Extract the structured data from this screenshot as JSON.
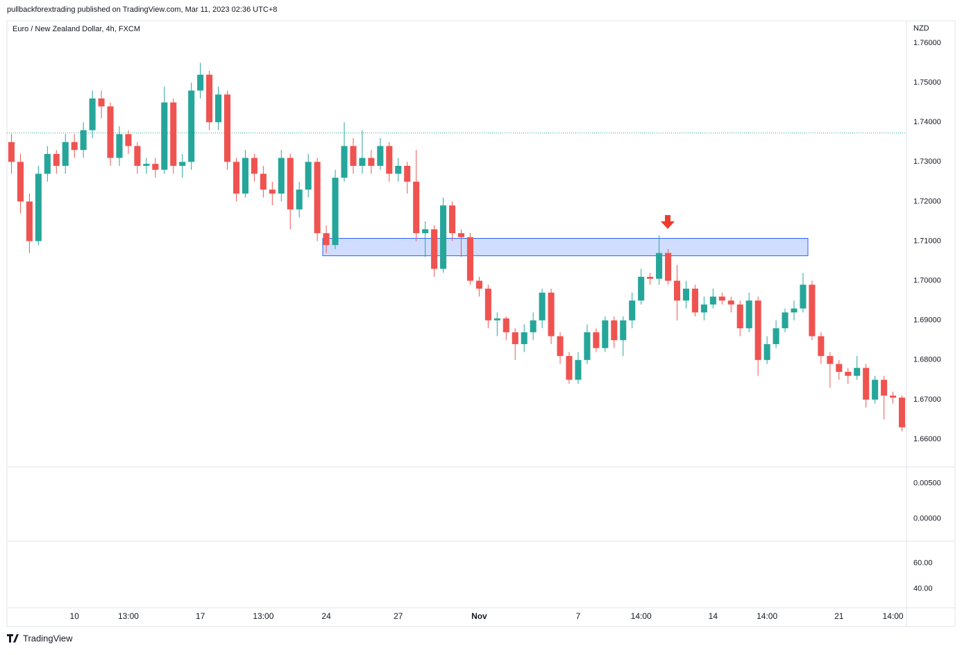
{
  "header": {
    "publisher": "pullbackforextrading published on TradingView.com, Mar 11, 2023 02:36 UTC+8",
    "symbol": "Euro / New Zealand Dollar, 4h, FXCM",
    "brand": "TradingView"
  },
  "chart_data": [
    {
      "type": "candlestick",
      "currency": "NZD",
      "up_color": "#26a69a",
      "down_color": "#ef5350",
      "categories": [
        null,
        null,
        null,
        null,
        null,
        null,
        null,
        "10",
        null,
        null,
        null,
        null,
        null,
        "13:00",
        null,
        null,
        null,
        null,
        null,
        null,
        null,
        "17",
        null,
        null,
        null,
        null,
        null,
        null,
        "13:00",
        null,
        null,
        null,
        null,
        null,
        null,
        "24",
        null,
        null,
        null,
        null,
        null,
        null,
        null,
        "27",
        null,
        null,
        null,
        null,
        null,
        null,
        null,
        null,
        "Nov",
        null,
        null,
        null,
        null,
        null,
        null,
        null,
        null,
        null,
        null,
        "7",
        null,
        null,
        null,
        null,
        null,
        null,
        "14:00",
        null,
        null,
        null,
        null,
        null,
        null,
        null,
        "14",
        null,
        null,
        null,
        null,
        null,
        "14:00",
        null,
        null,
        null,
        null,
        null,
        null,
        null,
        "21",
        null,
        null,
        null,
        null,
        null,
        "14:00",
        null
      ],
      "open": [
        1.735,
        1.73,
        1.72,
        1.71,
        1.727,
        1.732,
        1.729,
        1.735,
        1.733,
        1.738,
        1.746,
        1.744,
        1.731,
        1.737,
        1.734,
        1.729,
        1.7295,
        1.728,
        1.745,
        1.729,
        1.73,
        1.748,
        1.752,
        1.74,
        1.747,
        1.73,
        1.722,
        1.731,
        1.727,
        1.723,
        1.722,
        1.731,
        1.718,
        1.723,
        1.73,
        1.712,
        1.709,
        1.726,
        1.734,
        1.729,
        1.731,
        1.729,
        1.734,
        1.727,
        1.729,
        1.725,
        1.712,
        1.713,
        1.703,
        1.719,
        1.712,
        1.711,
        1.7,
        1.698,
        1.69,
        1.6905,
        1.687,
        1.684,
        1.687,
        1.69,
        1.697,
        1.686,
        1.681,
        1.675,
        1.68,
        1.687,
        1.683,
        1.69,
        1.685,
        1.69,
        1.695,
        1.701,
        1.7005,
        1.707,
        1.7,
        1.695,
        1.698,
        1.692,
        1.694,
        1.696,
        1.695,
        1.694,
        1.688,
        1.695,
        1.68,
        1.684,
        1.688,
        1.692,
        1.693,
        1.699,
        1.686,
        1.681,
        1.679,
        1.677,
        1.676,
        1.678,
        1.67,
        1.675,
        1.671,
        1.6705
      ],
      "high": [
        1.737,
        1.732,
        1.722,
        1.729,
        1.734,
        1.733,
        1.737,
        1.737,
        1.74,
        1.748,
        1.748,
        1.745,
        1.739,
        1.738,
        1.735,
        1.731,
        1.731,
        1.749,
        1.746,
        1.732,
        1.75,
        1.755,
        1.753,
        1.749,
        1.748,
        1.731,
        1.733,
        1.732,
        1.729,
        1.725,
        1.733,
        1.732,
        1.725,
        1.732,
        1.731,
        1.714,
        1.728,
        1.74,
        1.736,
        1.738,
        1.733,
        1.736,
        1.735,
        1.731,
        1.73,
        1.733,
        1.715,
        1.714,
        1.721,
        1.72,
        1.713,
        1.712,
        1.701,
        1.699,
        1.692,
        1.691,
        1.688,
        1.689,
        1.692,
        1.698,
        1.698,
        1.687,
        1.682,
        1.682,
        1.689,
        1.688,
        1.691,
        1.691,
        1.691,
        1.697,
        1.703,
        1.702,
        1.7115,
        1.708,
        1.704,
        1.7,
        1.699,
        1.696,
        1.698,
        1.697,
        1.696,
        1.695,
        1.697,
        1.696,
        1.686,
        1.69,
        1.693,
        1.695,
        1.702,
        1.7,
        1.687,
        1.682,
        1.68,
        1.678,
        1.681,
        1.679,
        1.676,
        1.676,
        1.672,
        1.671
      ],
      "low": [
        1.727,
        1.717,
        1.707,
        1.709,
        1.725,
        1.727,
        1.727,
        1.731,
        1.731,
        1.736,
        1.741,
        1.729,
        1.729,
        1.732,
        1.727,
        1.727,
        1.726,
        1.727,
        1.727,
        1.726,
        1.728,
        1.746,
        1.738,
        1.738,
        1.728,
        1.72,
        1.721,
        1.725,
        1.721,
        1.719,
        1.72,
        1.713,
        1.716,
        1.721,
        1.71,
        1.707,
        1.708,
        1.725,
        1.727,
        1.727,
        1.727,
        1.728,
        1.725,
        1.725,
        1.722,
        1.71,
        1.706,
        1.701,
        1.702,
        1.71,
        1.706,
        1.699,
        1.696,
        1.688,
        1.686,
        1.685,
        1.68,
        1.682,
        1.685,
        1.688,
        1.684,
        1.679,
        1.674,
        1.674,
        1.679,
        1.682,
        1.682,
        1.683,
        1.681,
        1.688,
        1.694,
        1.699,
        1.699,
        1.699,
        1.69,
        1.693,
        1.691,
        1.69,
        1.693,
        1.694,
        1.692,
        1.686,
        1.687,
        1.676,
        1.679,
        1.683,
        1.687,
        1.69,
        1.692,
        1.685,
        1.679,
        1.673,
        1.675,
        1.674,
        1.675,
        1.668,
        1.669,
        1.665,
        1.669,
        1.662
      ],
      "close": [
        1.73,
        1.72,
        1.71,
        1.727,
        1.732,
        1.729,
        1.735,
        1.733,
        1.738,
        1.746,
        1.744,
        1.731,
        1.737,
        1.734,
        1.729,
        1.7295,
        1.728,
        1.745,
        1.729,
        1.73,
        1.748,
        1.752,
        1.74,
        1.747,
        1.73,
        1.722,
        1.731,
        1.727,
        1.723,
        1.722,
        1.731,
        1.718,
        1.723,
        1.73,
        1.712,
        1.709,
        1.726,
        1.734,
        1.729,
        1.731,
        1.729,
        1.734,
        1.727,
        1.729,
        1.725,
        1.712,
        1.713,
        1.703,
        1.719,
        1.712,
        1.711,
        1.7,
        1.698,
        1.69,
        1.6905,
        1.687,
        1.684,
        1.687,
        1.69,
        1.697,
        1.686,
        1.681,
        1.675,
        1.68,
        1.687,
        1.683,
        1.69,
        1.685,
        1.69,
        1.695,
        1.701,
        1.7005,
        1.707,
        1.7,
        1.695,
        1.698,
        1.692,
        1.694,
        1.696,
        1.695,
        1.694,
        1.688,
        1.695,
        1.68,
        1.684,
        1.688,
        1.692,
        1.693,
        1.699,
        1.686,
        1.681,
        1.679,
        1.677,
        1.676,
        1.678,
        1.67,
        1.675,
        1.671,
        1.6705,
        1.663
      ],
      "ylim": [
        1.653,
        1.7656
      ],
      "yticks": [
        {
          "value": 1.66,
          "label": "1.66000"
        },
        {
          "value": 1.67,
          "label": "1.67000"
        },
        {
          "value": 1.68,
          "label": "1.68000"
        },
        {
          "value": 1.69,
          "label": "1.69000"
        },
        {
          "value": 1.7,
          "label": "1.70000"
        },
        {
          "value": 1.71,
          "label": "1.71000"
        },
        {
          "value": 1.72,
          "label": "1.72000"
        },
        {
          "value": 1.73,
          "label": "1.73000"
        },
        {
          "value": 1.74,
          "label": "1.74000"
        },
        {
          "value": 1.75,
          "label": "1.75000"
        },
        {
          "value": 1.76,
          "label": "1.76000"
        }
      ],
      "price_line": {
        "value": 1.7373,
        "color": "#26a69a"
      },
      "zone": {
        "low": 1.7063,
        "high": 1.7107,
        "color": "#2962ff"
      },
      "arrow_color": "#ef3b2c"
    },
    {
      "type": "indicator",
      "ylim": [
        -0.0032,
        0.0073
      ],
      "yticks": [
        {
          "value": 0.0,
          "label": "0.00000"
        },
        {
          "value": 0.005,
          "label": "0.00500"
        }
      ]
    },
    {
      "type": "indicator",
      "ylim": [
        25,
        77.2
      ],
      "yticks": [
        {
          "value": 40,
          "label": "40.00"
        },
        {
          "value": 60,
          "label": "60.00"
        }
      ]
    }
  ]
}
